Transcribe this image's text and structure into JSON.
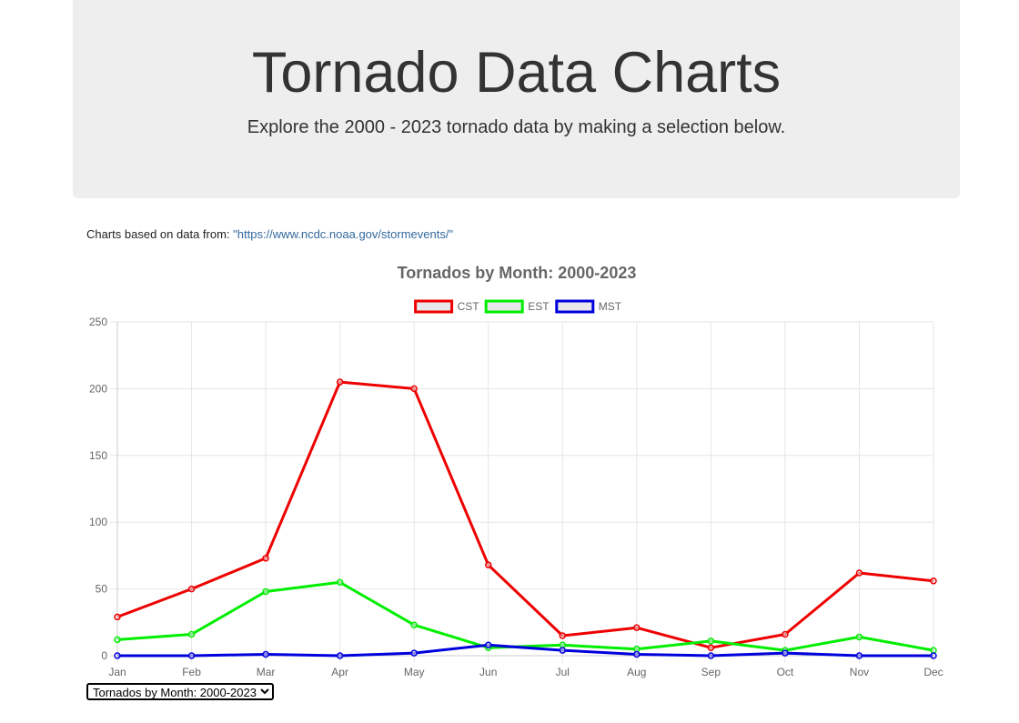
{
  "header": {
    "title": "Tornado Data Charts",
    "subtitle": "Explore the 2000 - 2023 tornado data by making a selection below."
  },
  "source": {
    "prefix": "Charts based on data from: ",
    "link_text": "\"https://www.ncdc.noaa.gov/stormevents/\""
  },
  "selector": {
    "selected": "Tornados by Month: 2000-2023"
  },
  "chart_data": {
    "type": "line",
    "title": "Tornados by Month: 2000-2023",
    "xlabel": "",
    "ylabel": "",
    "categories": [
      "Jan",
      "Feb",
      "Mar",
      "Apr",
      "May",
      "Jun",
      "Jul",
      "Aug",
      "Sep",
      "Oct",
      "Nov",
      "Dec"
    ],
    "ylim": [
      0,
      250
    ],
    "yticks": [
      0,
      50,
      100,
      150,
      200,
      250
    ],
    "grid": true,
    "legend_position": "top",
    "series": [
      {
        "name": "CST",
        "color": "#ee0000",
        "values": [
          29,
          50,
          73,
          205,
          200,
          68,
          15,
          21,
          6,
          16,
          62,
          56
        ]
      },
      {
        "name": "EST",
        "color": "#00ee00",
        "values": [
          12,
          16,
          48,
          55,
          23,
          6,
          8,
          5,
          11,
          4,
          14,
          4
        ]
      },
      {
        "name": "MST",
        "color": "#0000dd",
        "values": [
          0,
          0,
          1,
          0,
          2,
          8,
          4,
          1,
          0,
          2,
          0,
          0
        ]
      }
    ]
  }
}
